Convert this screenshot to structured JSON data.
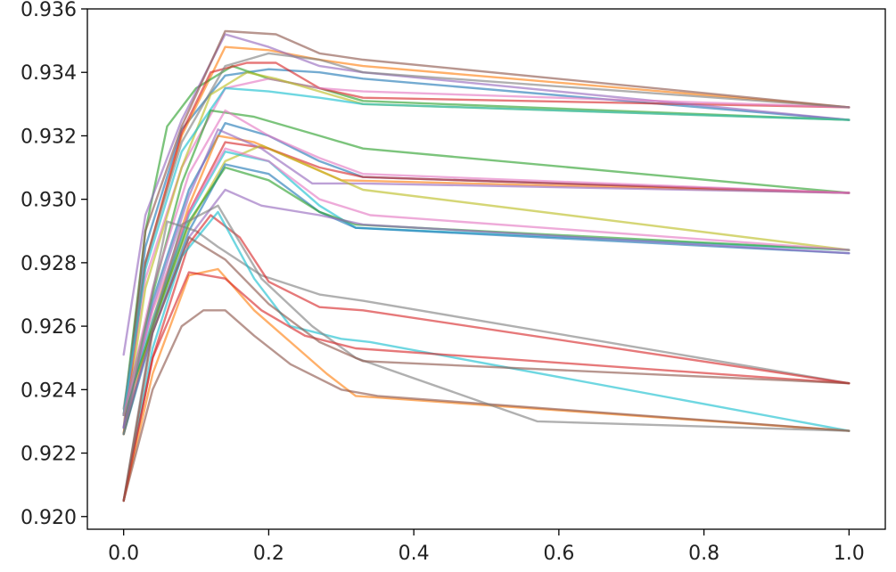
{
  "chart_data": {
    "type": "line",
    "title": "",
    "xlabel": "",
    "ylabel": "",
    "xlim": [
      -0.05,
      1.05
    ],
    "ylim": [
      0.9196,
      0.936
    ],
    "grid": false,
    "x_ticks": [
      0.0,
      0.2,
      0.4,
      0.6,
      0.8,
      1.0
    ],
    "x_tick_labels": [
      "0.0",
      "0.2",
      "0.4",
      "0.6",
      "0.8",
      "1.0"
    ],
    "y_ticks": [
      0.92,
      0.922,
      0.924,
      0.926,
      0.928,
      0.93,
      0.932,
      0.934,
      0.936
    ],
    "y_tick_labels": [
      "0.920",
      "0.922",
      "0.924",
      "0.926",
      "0.928",
      "0.930",
      "0.932",
      "0.934",
      "0.936"
    ],
    "series": [
      {
        "color": "#1f77b4",
        "x": [
          0,
          0.03,
          0.08,
          0.14,
          0.2,
          0.27,
          0.33,
          1.0
        ],
        "y": [
          0.9232,
          0.9285,
          0.9322,
          0.9339,
          0.9341,
          0.934,
          0.9338,
          0.9325
        ]
      },
      {
        "color": "#ff7f0e",
        "x": [
          0,
          0.03,
          0.08,
          0.14,
          0.2,
          0.27,
          0.33,
          1.0
        ],
        "y": [
          0.9226,
          0.928,
          0.932,
          0.9348,
          0.9347,
          0.9344,
          0.9342,
          0.9329
        ]
      },
      {
        "color": "#2ca02c",
        "x": [
          0,
          0.03,
          0.06,
          0.1,
          0.15,
          0.2,
          0.27,
          0.33,
          1.0
        ],
        "y": [
          0.9232,
          0.929,
          0.9323,
          0.9335,
          0.9342,
          0.9338,
          0.9335,
          0.9331,
          0.9325
        ]
      },
      {
        "color": "#d62728",
        "x": [
          0,
          0.03,
          0.08,
          0.12,
          0.17,
          0.21,
          0.27,
          0.33,
          1.0
        ],
        "y": [
          0.9226,
          0.928,
          0.9321,
          0.934,
          0.9343,
          0.9343,
          0.9335,
          0.9332,
          0.9329
        ]
      },
      {
        "color": "#9467bd",
        "x": [
          0,
          0.03,
          0.08,
          0.14,
          0.2,
          0.27,
          0.33,
          1.0
        ],
        "y": [
          0.9251,
          0.9295,
          0.9325,
          0.9352,
          0.9348,
          0.9342,
          0.934,
          0.9325
        ]
      },
      {
        "color": "#8c564b",
        "x": [
          0,
          0.03,
          0.08,
          0.14,
          0.21,
          0.27,
          0.33,
          1.0
        ],
        "y": [
          0.9228,
          0.929,
          0.9323,
          0.9353,
          0.9352,
          0.9346,
          0.9344,
          0.9329
        ]
      },
      {
        "color": "#e377c2",
        "x": [
          0,
          0.03,
          0.08,
          0.14,
          0.2,
          0.27,
          0.33,
          1.0
        ],
        "y": [
          0.9232,
          0.9275,
          0.931,
          0.9335,
          0.9338,
          0.9335,
          0.9334,
          0.9329
        ]
      },
      {
        "color": "#7f7f7f",
        "x": [
          0,
          0.03,
          0.08,
          0.14,
          0.2,
          0.27,
          0.33,
          1.0
        ],
        "y": [
          0.9234,
          0.928,
          0.9318,
          0.9342,
          0.9346,
          0.9344,
          0.934,
          0.9329
        ]
      },
      {
        "color": "#bcbd22",
        "x": [
          0,
          0.03,
          0.08,
          0.12,
          0.17,
          0.21,
          0.27,
          0.33,
          1.0
        ],
        "y": [
          0.9226,
          0.9272,
          0.931,
          0.9333,
          0.934,
          0.9338,
          0.9334,
          0.933,
          0.9325
        ]
      },
      {
        "color": "#17becf",
        "x": [
          0,
          0.03,
          0.08,
          0.14,
          0.2,
          0.27,
          0.33,
          1.0
        ],
        "y": [
          0.9232,
          0.9278,
          0.9315,
          0.9335,
          0.9334,
          0.9332,
          0.933,
          0.9325
        ]
      },
      {
        "color": "#1f77b4",
        "x": [
          0,
          0.04,
          0.09,
          0.14,
          0.2,
          0.27,
          0.33,
          1.0
        ],
        "y": [
          0.9228,
          0.9268,
          0.9303,
          0.9324,
          0.932,
          0.9312,
          0.9307,
          0.9302
        ]
      },
      {
        "color": "#ff7f0e",
        "x": [
          0,
          0.04,
          0.09,
          0.13,
          0.18,
          0.24,
          0.3,
          1.0
        ],
        "y": [
          0.9226,
          0.9262,
          0.9298,
          0.932,
          0.9318,
          0.9312,
          0.9306,
          0.9302
        ]
      },
      {
        "color": "#2ca02c",
        "x": [
          0,
          0.04,
          0.08,
          0.12,
          0.18,
          0.27,
          0.33,
          1.0
        ],
        "y": [
          0.9232,
          0.927,
          0.9305,
          0.9328,
          0.9326,
          0.932,
          0.9316,
          0.9302
        ]
      },
      {
        "color": "#d62728",
        "x": [
          0,
          0.04,
          0.09,
          0.14,
          0.2,
          0.27,
          0.33,
          1.0
        ],
        "y": [
          0.9226,
          0.926,
          0.9296,
          0.9318,
          0.9316,
          0.931,
          0.9307,
          0.9302
        ]
      },
      {
        "color": "#9467bd",
        "x": [
          0,
          0.04,
          0.09,
          0.13,
          0.19,
          0.26,
          0.33,
          1.0
        ],
        "y": [
          0.9228,
          0.9266,
          0.9301,
          0.9322,
          0.9316,
          0.9305,
          0.9305,
          0.9302
        ]
      },
      {
        "color": "#e377c2",
        "x": [
          0,
          0.04,
          0.09,
          0.14,
          0.2,
          0.27,
          0.33,
          1.0
        ],
        "y": [
          0.9232,
          0.9272,
          0.9308,
          0.9328,
          0.932,
          0.9313,
          0.9308,
          0.9302
        ]
      },
      {
        "color": "#bcbd22",
        "x": [
          0,
          0.04,
          0.09,
          0.14,
          0.19,
          0.27,
          0.33,
          1.0
        ],
        "y": [
          0.9226,
          0.926,
          0.9292,
          0.9312,
          0.9317,
          0.9309,
          0.9303,
          0.9284
        ]
      },
      {
        "color": "#17becf",
        "x": [
          0,
          0.04,
          0.09,
          0.14,
          0.2,
          0.27,
          0.32,
          1.0
        ],
        "y": [
          0.9232,
          0.9262,
          0.9295,
          0.9315,
          0.9312,
          0.9298,
          0.9291,
          0.9284
        ]
      },
      {
        "color": "#1f77b4",
        "x": [
          0,
          0.04,
          0.09,
          0.14,
          0.2,
          0.27,
          0.32,
          1.0
        ],
        "y": [
          0.9226,
          0.9258,
          0.929,
          0.9311,
          0.9308,
          0.9296,
          0.9291,
          0.9283
        ]
      },
      {
        "color": "#2ca02c",
        "x": [
          0,
          0.04,
          0.09,
          0.14,
          0.2,
          0.27,
          0.32,
          1.0
        ],
        "y": [
          0.9232,
          0.926,
          0.9293,
          0.931,
          0.9306,
          0.9296,
          0.9292,
          0.9284
        ]
      },
      {
        "color": "#9467bd",
        "x": [
          0,
          0.04,
          0.09,
          0.14,
          0.19,
          0.27,
          0.33,
          1.0
        ],
        "y": [
          0.9228,
          0.9258,
          0.9288,
          0.9303,
          0.9298,
          0.9295,
          0.9292,
          0.9283
        ]
      },
      {
        "color": "#e377c2",
        "x": [
          0,
          0.04,
          0.09,
          0.14,
          0.2,
          0.27,
          0.34,
          1.0
        ],
        "y": [
          0.9232,
          0.9265,
          0.9296,
          0.9316,
          0.9312,
          0.93,
          0.9295,
          0.9284
        ]
      },
      {
        "color": "#7f7f7f",
        "x": [
          0,
          0.03,
          0.06,
          0.1,
          0.13,
          0.19,
          0.27,
          0.33,
          1.0
        ],
        "y": [
          0.9226,
          0.926,
          0.9293,
          0.929,
          0.9285,
          0.9276,
          0.927,
          0.9268,
          0.9242
        ]
      },
      {
        "color": "#d62728",
        "x": [
          0,
          0.04,
          0.09,
          0.12,
          0.16,
          0.2,
          0.27,
          0.33,
          1.0
        ],
        "y": [
          0.9205,
          0.925,
          0.9286,
          0.9295,
          0.9288,
          0.9274,
          0.9266,
          0.9265,
          0.9242
        ]
      },
      {
        "color": "#17becf",
        "x": [
          0,
          0.04,
          0.08,
          0.13,
          0.18,
          0.23,
          0.3,
          0.34,
          1.0
        ],
        "y": [
          0.9205,
          0.9253,
          0.9282,
          0.9296,
          0.9275,
          0.926,
          0.9256,
          0.9255,
          0.9227
        ]
      },
      {
        "color": "#ff7f0e",
        "x": [
          0,
          0.04,
          0.09,
          0.13,
          0.18,
          0.23,
          0.28,
          0.32,
          1.0
        ],
        "y": [
          0.9205,
          0.9245,
          0.9276,
          0.9278,
          0.9265,
          0.9255,
          0.9245,
          0.9238,
          0.9227
        ]
      },
      {
        "color": "#8c564b",
        "x": [
          0,
          0.04,
          0.08,
          0.11,
          0.14,
          0.18,
          0.23,
          0.3,
          0.35,
          1.0
        ],
        "y": [
          0.9205,
          0.924,
          0.926,
          0.9265,
          0.9265,
          0.9257,
          0.9248,
          0.924,
          0.9238,
          0.9227
        ]
      },
      {
        "color": "#7f7f7f",
        "x": [
          0,
          0.04,
          0.08,
          0.13,
          0.19,
          0.26,
          0.32,
          0.57,
          1.0
        ],
        "y": [
          0.9205,
          0.926,
          0.9292,
          0.9298,
          0.9275,
          0.926,
          0.925,
          0.923,
          0.9227
        ]
      },
      {
        "color": "#d62728",
        "x": [
          0,
          0.04,
          0.09,
          0.14,
          0.19,
          0.25,
          0.32,
          1.0
        ],
        "y": [
          0.9205,
          0.925,
          0.9277,
          0.9275,
          0.9265,
          0.9257,
          0.9253,
          0.9242
        ]
      },
      {
        "color": "#8c564b",
        "x": [
          0,
          0.04,
          0.09,
          0.14,
          0.2,
          0.27,
          0.33,
          1.0
        ],
        "y": [
          0.9205,
          0.9258,
          0.9288,
          0.9281,
          0.9267,
          0.9255,
          0.9249,
          0.9242
        ]
      }
    ]
  }
}
